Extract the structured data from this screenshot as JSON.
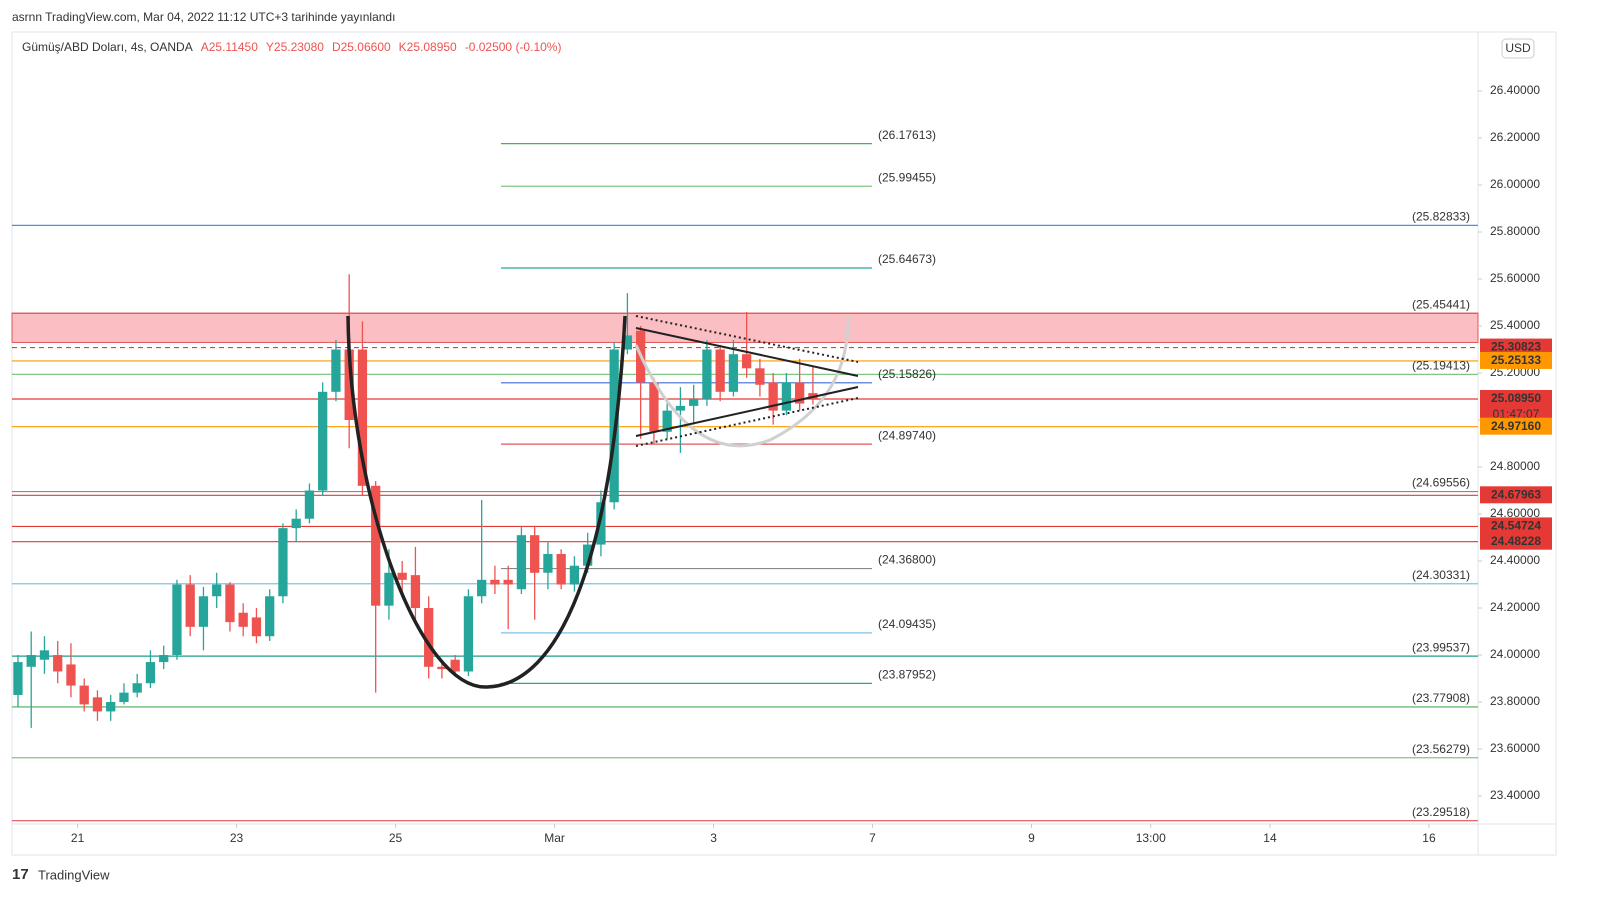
{
  "header": {
    "published": "asrnn TradingView.com, Mar 04, 2022 11:12 UTC+3 tarihinde yayınlandı",
    "symbol": "Gümüş/ABD Doları, 4s, OANDA",
    "ohlc": [
      "A25.11450",
      "Y25.23080",
      "D25.06600",
      "K25.08950"
    ],
    "change": "-0.02500 (-0.10%)",
    "currency": "USD"
  },
  "footer": {
    "brand": "TradingView"
  },
  "chart_data": {
    "type": "candlestick",
    "up_color": "#26a69a",
    "down_color": "#ef5350",
    "x": [
      0,
      1,
      2,
      3,
      4,
      5,
      6,
      7,
      8,
      9,
      10,
      11,
      12,
      13,
      14,
      15,
      16,
      17,
      18,
      19,
      20,
      21,
      22,
      23,
      24,
      25,
      26,
      27,
      28,
      29,
      30,
      31,
      32,
      33,
      34,
      35,
      36,
      37,
      38,
      39,
      40,
      41,
      42,
      43,
      44,
      45,
      46,
      47,
      48,
      49,
      50,
      51,
      52,
      53,
      54,
      55,
      56,
      57,
      58,
      59,
      60
    ],
    "open": [
      23.83,
      23.95,
      23.98,
      24.0,
      23.96,
      23.87,
      23.82,
      23.76,
      23.8,
      23.84,
      23.88,
      23.97,
      24.0,
      24.3,
      24.12,
      24.25,
      24.3,
      24.18,
      24.16,
      24.08,
      24.25,
      24.54,
      24.58,
      24.7,
      25.12,
      25.3,
      25.3,
      24.72,
      24.21,
      24.35,
      24.34,
      24.2,
      23.95,
      23.98,
      23.93,
      24.25,
      24.32,
      24.32,
      24.28,
      24.51,
      24.35,
      24.43,
      24.3,
      24.38,
      24.47,
      24.65,
      25.3,
      25.38,
      25.16,
      24.95,
      25.04,
      25.06,
      25.09,
      25.3,
      25.12,
      25.28,
      25.22,
      25.16,
      25.04,
      25.16,
      25.1145
    ],
    "high": [
      24.0,
      24.1,
      24.08,
      24.06,
      24.05,
      23.9,
      23.85,
      23.83,
      23.88,
      23.92,
      24.02,
      24.04,
      24.32,
      24.34,
      24.29,
      24.35,
      24.31,
      24.22,
      24.2,
      24.28,
      24.56,
      24.62,
      24.73,
      25.16,
      25.34,
      25.62,
      25.42,
      24.74,
      24.45,
      24.4,
      24.46,
      24.25,
      23.98,
      24.0,
      24.28,
      24.66,
      24.38,
      24.38,
      24.55,
      24.55,
      24.48,
      24.45,
      24.42,
      24.52,
      24.7,
      25.33,
      25.54,
      25.4,
      25.18,
      25.08,
      25.14,
      25.15,
      25.34,
      25.32,
      25.34,
      25.46,
      25.26,
      25.2,
      25.2,
      25.26,
      25.2308
    ],
    "low": [
      23.78,
      23.69,
      23.92,
      23.88,
      23.82,
      23.76,
      23.72,
      23.72,
      23.79,
      23.82,
      23.86,
      23.94,
      23.98,
      24.08,
      24.02,
      24.2,
      24.1,
      24.08,
      24.05,
      24.06,
      24.22,
      24.48,
      24.56,
      24.68,
      25.08,
      24.88,
      24.68,
      23.84,
      24.15,
      24.25,
      24.14,
      23.9,
      23.9,
      23.91,
      23.91,
      24.22,
      24.26,
      24.11,
      24.26,
      24.15,
      24.28,
      24.28,
      24.27,
      24.35,
      24.42,
      24.62,
      25.28,
      24.92,
      24.9,
      24.92,
      24.86,
      24.98,
      25.06,
      25.08,
      25.1,
      25.18,
      25.1,
      24.98,
      25.02,
      25.04,
      25.066
    ],
    "close": [
      23.97,
      24.0,
      24.02,
      23.93,
      23.87,
      23.79,
      23.76,
      23.8,
      23.84,
      23.88,
      23.97,
      24.0,
      24.3,
      24.12,
      24.25,
      24.3,
      24.14,
      24.12,
      24.08,
      24.25,
      24.54,
      24.58,
      24.7,
      25.12,
      25.3,
      25.0,
      24.72,
      24.21,
      24.35,
      24.32,
      24.2,
      23.95,
      23.94,
      23.93,
      24.25,
      24.32,
      24.3,
      24.3,
      24.51,
      24.35,
      24.43,
      24.3,
      24.38,
      24.47,
      24.65,
      25.3,
      25.36,
      25.16,
      24.95,
      25.04,
      25.06,
      25.09,
      25.3,
      25.12,
      25.28,
      25.22,
      25.15,
      25.04,
      25.16,
      25.07,
      25.0895
    ],
    "xlim": [
      -0.45,
      110.2
    ],
    "xticks": [
      {
        "value": 4.5,
        "label": "21"
      },
      {
        "value": 16.5,
        "label": "23"
      },
      {
        "value": 28.5,
        "label": "25"
      },
      {
        "value": 40.5,
        "label": "Mar"
      },
      {
        "value": 52.5,
        "label": "3"
      },
      {
        "value": 64.5,
        "label": "7"
      },
      {
        "value": 76.5,
        "label": "9"
      },
      {
        "value": 85.5,
        "label": "13:00"
      },
      {
        "value": 94.5,
        "label": "14"
      },
      {
        "value": 106.5,
        "label": "16"
      }
    ],
    "ylim": [
      23.281,
      26.651
    ],
    "yticks": [
      {
        "value": 23.4,
        "label": "23.40000"
      },
      {
        "value": 23.6,
        "label": "23.60000"
      },
      {
        "value": 23.8,
        "label": "23.80000"
      },
      {
        "value": 24.0,
        "label": "24.00000"
      },
      {
        "value": 24.2,
        "label": "24.20000"
      },
      {
        "value": 24.4,
        "label": "24.40000"
      },
      {
        "value": 24.6,
        "label": "24.60000"
      },
      {
        "value": 24.8,
        "label": "24.80000"
      },
      {
        "value": 25.0,
        "label": "25.00000"
      },
      {
        "value": 25.2,
        "label": "25.20000"
      },
      {
        "value": 25.4,
        "label": "25.40000"
      },
      {
        "value": 25.6,
        "label": "25.60000"
      },
      {
        "value": 25.8,
        "label": "25.80000"
      },
      {
        "value": 26.0,
        "label": "26.00000"
      },
      {
        "value": 26.2,
        "label": "26.20000"
      },
      {
        "value": 26.4,
        "label": "26.40000"
      }
    ],
    "zone": [
      25.33,
      25.45441
    ],
    "levels": [
      {
        "value": 25.82833,
        "label": "(25.82833)",
        "color": "#4a90d9"
      },
      {
        "value": 25.45441,
        "label": "(25.45441)",
        "color": "#e05656"
      },
      {
        "value": 25.19413,
        "label": "(25.19413)",
        "color": "#81c784"
      },
      {
        "value": 24.69556,
        "label": "(24.69556)",
        "color": "#888888"
      },
      {
        "value": 24.30331,
        "label": "(24.30331)",
        "color": "#7ec3e6"
      },
      {
        "value": 23.99537,
        "label": "(23.99537)",
        "color": "#1e9e8a"
      },
      {
        "value": 23.77908,
        "label": "(23.77908)",
        "color": "#4caf50"
      },
      {
        "value": 23.56279,
        "label": "(23.56279)",
        "color": "#81c784"
      },
      {
        "value": 23.29518,
        "label": "(23.29518)",
        "color": "#e05656"
      }
    ],
    "fib_levels": [
      {
        "value": 26.17613,
        "label": "(26.17613)",
        "color": "#4caf50"
      },
      {
        "value": 25.99455,
        "label": "(25.99455)",
        "color": "#81c784"
      },
      {
        "value": 25.64673,
        "label": "(25.64673)",
        "color": "#26a69a"
      },
      {
        "value": 25.15826,
        "label": "(25.15826)",
        "color": "#3f6fd8"
      },
      {
        "value": 24.8974,
        "label": "(24.89740)",
        "color": "#e05656"
      },
      {
        "value": 24.368,
        "label": "(24.36800)",
        "color": "#888888"
      },
      {
        "value": 24.09435,
        "label": "(24.09435)",
        "color": "#7ec3e6"
      },
      {
        "value": 23.87952,
        "label": "(23.87952)",
        "color": "#26a69a"
      }
    ],
    "price_labels": [
      {
        "value": 25.30823,
        "label": "25.30823",
        "color": "#e53935",
        "dashed": true
      },
      {
        "value": 25.25133,
        "label": "25.25133",
        "color": "#ff9800"
      },
      {
        "value": 25.0895,
        "label": "25.08950",
        "color": "#e53935",
        "countdown": "01:47:07"
      },
      {
        "value": 24.9716,
        "label": "24.97160",
        "color": "#ff9800"
      },
      {
        "value": 24.67963,
        "label": "24.67963",
        "color": "#e53935"
      },
      {
        "value": 24.54724,
        "label": "24.54724",
        "color": "#e53935"
      },
      {
        "value": 24.48228,
        "label": "24.48228",
        "color": "#e53935"
      }
    ]
  }
}
